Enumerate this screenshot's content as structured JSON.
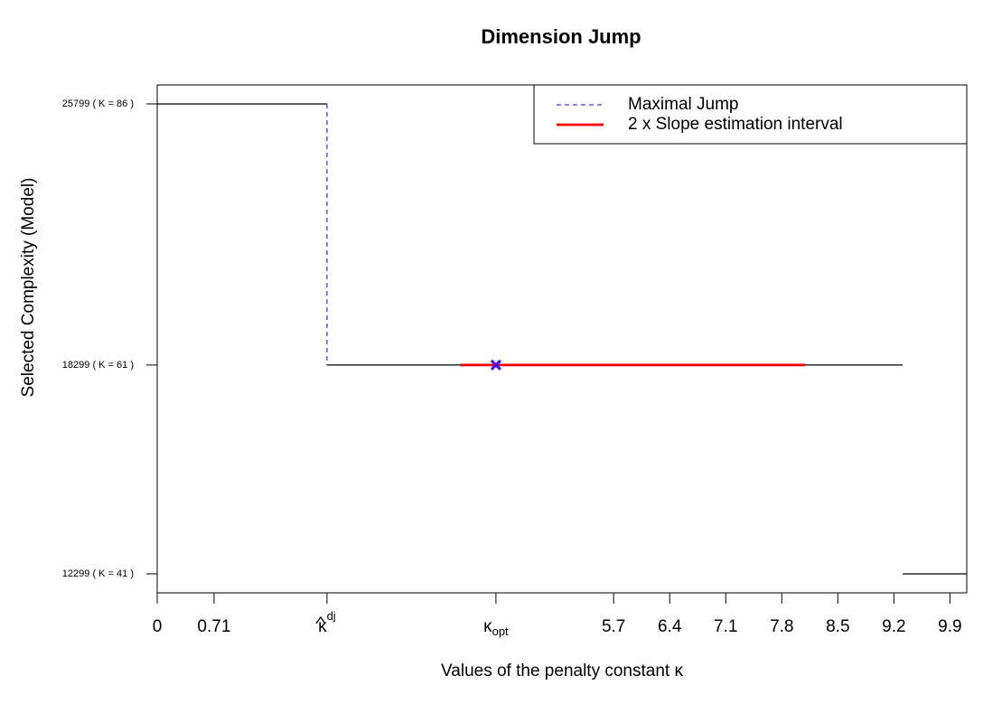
{
  "chart_data": {
    "type": "step",
    "title": "Dimension Jump",
    "x_label": "Values of the penalty constant κ",
    "y_label": "Selected Complexity (Model)",
    "xlim": [
      0,
      10.11
    ],
    "ylim": [
      11754,
      26344
    ],
    "xticks": [
      0,
      0.71,
      {
        "value": 2.12,
        "label": "κ",
        "superscript": "dj"
      },
      {
        "value": 4.23,
        "label": "κ",
        "subscript": "opt"
      },
      5.7,
      6.4,
      7.1,
      7.8,
      8.5,
      9.2,
      9.9
    ],
    "yticks": [
      {
        "value": 25799,
        "label": "25799 ( K = 86 )"
      },
      {
        "value": 18299,
        "label": "18299 ( K = 61 )"
      },
      {
        "value": 12299,
        "label": "12299 ( K = 41 )"
      }
    ],
    "steps": {
      "color": "#000000",
      "x_start": [
        0,
        2.12,
        9.31
      ],
      "x_end": [
        2.12,
        9.31,
        10.11
      ],
      "values": [
        25799,
        18299,
        12299
      ]
    },
    "series": [
      {
        "name": "Maximal Jump",
        "color": "#5b2be0",
        "x": [
          2.12,
          2.12
        ],
        "values": [
          25799,
          18299
        ]
      },
      {
        "name": "2 x Slope estimation interval",
        "color": "#ff0000",
        "x": [
          3.78,
          8.09
        ],
        "values": [
          18299,
          18299
        ]
      }
    ],
    "optimum": {
      "color": "#4b16e0",
      "x": 4.23,
      "y": 18299
    },
    "legend": "top-right"
  }
}
